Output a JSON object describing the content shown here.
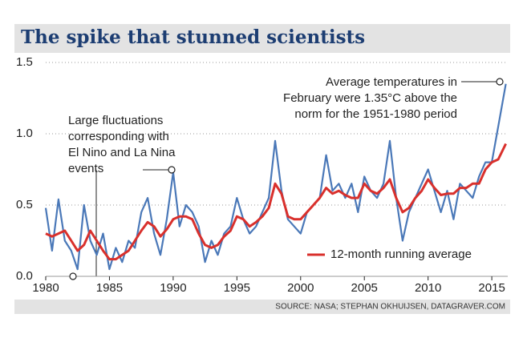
{
  "chart_data": {
    "type": "line",
    "title": "The spike that stunned scientists",
    "source": "SOURCE: NASA; STEPHAN OKHUIJSEN, DATAGRAVER.COM",
    "annotations": [
      [
        "Average temperatures in",
        "February were 1.35°C above the",
        "norm for the 1951-1980 period"
      ],
      [
        "Large fluctuations",
        "corresponding with",
        "El Nino and La Nina",
        "events"
      ]
    ],
    "x": [
      1980,
      1980.5,
      1981,
      1981.5,
      1982,
      1982.5,
      1983,
      1983.5,
      1984,
      1984.5,
      1985,
      1985.5,
      1986,
      1986.5,
      1987,
      1987.5,
      1988,
      1988.5,
      1989,
      1989.5,
      1990,
      1990.5,
      1991,
      1991.5,
      1992,
      1992.5,
      1993,
      1993.5,
      1994,
      1994.5,
      1995,
      1995.5,
      1996,
      1996.5,
      1997,
      1997.5,
      1998,
      1998.5,
      1999,
      1999.5,
      2000,
      2000.5,
      2001,
      2001.5,
      2002,
      2002.5,
      2003,
      2003.5,
      2004,
      2004.5,
      2005,
      2005.5,
      2006,
      2006.5,
      2007,
      2007.5,
      2008,
      2008.5,
      2009,
      2009.5,
      2010,
      2010.5,
      2011,
      2011.5,
      2012,
      2012.5,
      2013,
      2013.5,
      2014,
      2014.5,
      2015,
      2015.5,
      2016.1
    ],
    "series": [
      {
        "color": "#4a78b8",
        "values": [
          0.48,
          0.18,
          0.54,
          0.25,
          0.18,
          0.05,
          0.5,
          0.25,
          0.15,
          0.3,
          0.05,
          0.2,
          0.1,
          0.25,
          0.2,
          0.45,
          0.55,
          0.3,
          0.15,
          0.4,
          0.73,
          0.35,
          0.5,
          0.45,
          0.35,
          0.1,
          0.25,
          0.15,
          0.3,
          0.35,
          0.55,
          0.4,
          0.3,
          0.35,
          0.45,
          0.55,
          0.95,
          0.6,
          0.4,
          0.35,
          0.3,
          0.45,
          0.5,
          0.55,
          0.85,
          0.6,
          0.65,
          0.55,
          0.65,
          0.45,
          0.7,
          0.6,
          0.55,
          0.65,
          0.95,
          0.55,
          0.25,
          0.45,
          0.55,
          0.65,
          0.75,
          0.6,
          0.45,
          0.6,
          0.4,
          0.65,
          0.6,
          0.55,
          0.7,
          0.8,
          0.8,
          1.05,
          1.35
        ]
      },
      {
        "name": "12-month running average",
        "color": "#d9302c",
        "values": [
          0.3,
          0.28,
          0.3,
          0.32,
          0.25,
          0.18,
          0.22,
          0.32,
          0.25,
          0.18,
          0.12,
          0.12,
          0.15,
          0.18,
          0.25,
          0.32,
          0.38,
          0.35,
          0.28,
          0.33,
          0.4,
          0.42,
          0.42,
          0.4,
          0.3,
          0.22,
          0.2,
          0.22,
          0.28,
          0.32,
          0.42,
          0.4,
          0.35,
          0.38,
          0.42,
          0.48,
          0.65,
          0.58,
          0.42,
          0.4,
          0.4,
          0.45,
          0.5,
          0.55,
          0.62,
          0.58,
          0.6,
          0.57,
          0.55,
          0.55,
          0.65,
          0.6,
          0.58,
          0.62,
          0.68,
          0.55,
          0.45,
          0.48,
          0.55,
          0.6,
          0.68,
          0.62,
          0.57,
          0.58,
          0.58,
          0.62,
          0.62,
          0.65,
          0.65,
          0.75,
          0.8,
          0.82,
          0.93
        ]
      }
    ],
    "xlim": [
      1980,
      2016
    ],
    "xticks": [
      1980,
      1985,
      1990,
      1995,
      2000,
      2005,
      2010,
      2015
    ],
    "ylim": [
      0,
      1.5
    ],
    "yticks": [
      {
        "value": 0,
        "label": "0.0"
      },
      {
        "value": 0.5,
        "label": "0.5"
      },
      {
        "value": 1,
        "label": "1.0"
      },
      {
        "value": 1.5,
        "label": "1.5"
      }
    ],
    "grid": true
  }
}
